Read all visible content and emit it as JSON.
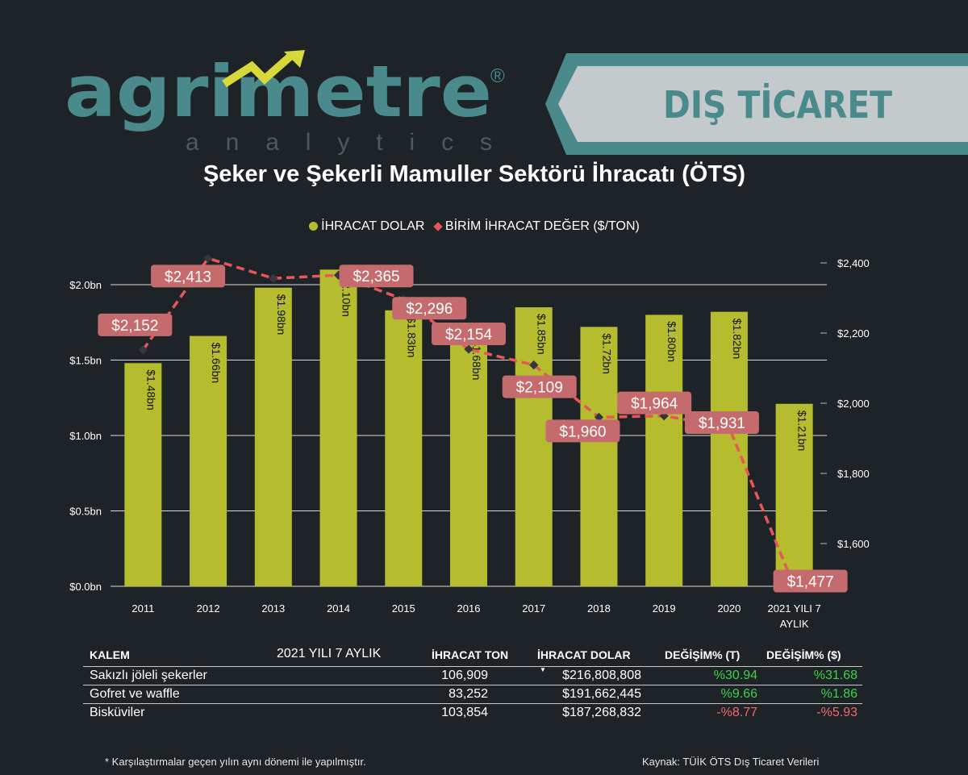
{
  "logo": {
    "brand": "agrimetre",
    "sub": "analytics",
    "reg": "®"
  },
  "banner": {
    "text": "DIŞ TİCARET"
  },
  "colors": {
    "bar": "#b5bd2e",
    "line": "#e8565a",
    "label_bg": "#c66b6d",
    "teal": "#4a8a8c",
    "background": "#1e2327"
  },
  "chart_data": {
    "type": "bar+line",
    "title": "Şeker ve Şekerli Mamuller Sektörü İhracatı (ÖTS)",
    "categories": [
      "2011",
      "2012",
      "2013",
      "2014",
      "2015",
      "2016",
      "2017",
      "2018",
      "2019",
      "2020",
      "2021 YILI 7 AYLIK"
    ],
    "legend_placement": "top",
    "series": [
      {
        "name": "İHRACAT DOLAR",
        "type": "bar",
        "axis": "left",
        "unit": "bn $",
        "values": [
          1.48,
          1.66,
          1.98,
          2.1,
          1.83,
          1.68,
          1.85,
          1.72,
          1.8,
          1.82,
          1.21
        ],
        "labels": [
          "$1.48bn",
          "$1.66bn",
          "$1.98bn",
          "$2.10bn",
          "$1.83bn",
          "$1.68bn",
          "$1.85bn",
          "$1.72bn",
          "$1.80bn",
          "$1.82bn",
          "$1.21bn"
        ]
      },
      {
        "name": "BİRİM İHRACAT DEĞER ($/TON)",
        "type": "line",
        "axis": "right",
        "values": [
          2152,
          2413,
          2356,
          2365,
          2296,
          2154,
          2109,
          1960,
          1964,
          1931,
          1477
        ],
        "labels": [
          "$2,152",
          "$2,413",
          "",
          "$2,365",
          "$2,296",
          "$2,154",
          "$2,109",
          "$1,960",
          "$1,964",
          "$1,931",
          "$1,477"
        ]
      }
    ],
    "y_left": {
      "ylim": [
        0,
        2.0
      ],
      "ticks": [
        "$0.0bn",
        "$0.5bn",
        "$1.0bn",
        "$1.5bn",
        "$2.0bn"
      ],
      "tick_values": [
        0,
        0.5,
        1.0,
        1.5,
        2.0
      ]
    },
    "y_right": {
      "ticks": [
        "$1,600",
        "$1,800",
        "$2,000",
        "$2,200",
        "$2,400"
      ],
      "tick_values": [
        1600,
        1800,
        2000,
        2200,
        2400
      ]
    },
    "grid": true
  },
  "table": {
    "headers": [
      "KALEM",
      "2021 YILI 7 AYLIK",
      "İHRACAT TON",
      "İHRACAT DOLAR",
      "DEĞİŞİM% (T)",
      "DEĞİŞİM% ($)"
    ],
    "rows": [
      {
        "item": "Sakızlı jöleli şekerler",
        "ton": "106,909",
        "usd": "$216,808,808",
        "chg_t": "%30.94",
        "chg_usd": "%31.68"
      },
      {
        "item": "Gofret ve waffle",
        "ton": "83,252",
        "usd": "$191,662,445",
        "chg_t": "%9.66",
        "chg_usd": "%1.86"
      },
      {
        "item": "Bisküviler",
        "ton": "103,854",
        "usd": "$187,268,832",
        "chg_t": "-%8.77",
        "chg_usd": "-%5.93"
      }
    ]
  },
  "footnote": "* Karşılaştırmalar geçen yılın aynı dönemi ile yapılmıştır.",
  "source": "Kaynak: TÜİK ÖTS Dış Ticaret Verileri"
}
